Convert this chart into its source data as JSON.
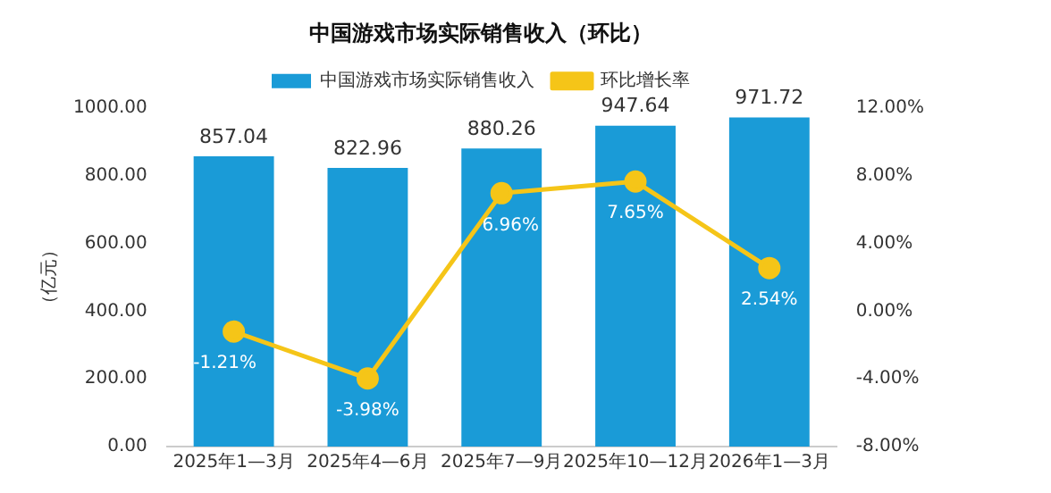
{
  "chart_data": {
    "type": "bar",
    "title": "中国游戏市场实际销售收入（环比）",
    "ylabel": "（亿元）",
    "categories": [
      "2025年1—3月",
      "2025年4—6月",
      "2025年7—9月",
      "2025年10—12月",
      "2026年1—3月"
    ],
    "series": [
      {
        "name": "中国游戏市场实际销售收入",
        "color": "#1a9bd7",
        "values": [
          857.04,
          822.96,
          880.26,
          947.64,
          971.72
        ],
        "value_labels": [
          "857.04",
          "822.96",
          "880.26",
          "947.64",
          "971.72"
        ]
      },
      {
        "name": "环比增长率",
        "type": "line",
        "axis": "y2",
        "color": "#f5c518",
        "values": [
          -1.21,
          -3.98,
          6.96,
          7.65,
          2.54
        ],
        "value_labels": [
          "-1.21%",
          "-3.98%",
          "6.96%",
          "7.65%",
          "2.54%"
        ]
      }
    ],
    "ylim": [
      0,
      1000
    ],
    "yticks": [
      {
        "value": 0,
        "label": "0.00"
      },
      {
        "value": 200,
        "label": "200.00"
      },
      {
        "value": 400,
        "label": "400.00"
      },
      {
        "value": 600,
        "label": "600.00"
      },
      {
        "value": 800,
        "label": "800.00"
      },
      {
        "value": 1000,
        "label": "1000.00"
      }
    ],
    "y2lim": [
      -8,
      12
    ],
    "y2ticks": [
      {
        "value": -8,
        "label": "-8.00%"
      },
      {
        "value": -4,
        "label": "-4.00%"
      },
      {
        "value": 0,
        "label": "0.00%"
      },
      {
        "value": 4,
        "label": "4.00%"
      },
      {
        "value": 8,
        "label": "8.00%"
      },
      {
        "value": 12,
        "label": "12.00%"
      }
    ],
    "grid": false,
    "legend": "top",
    "marker": "circle",
    "line_style": "solid"
  }
}
